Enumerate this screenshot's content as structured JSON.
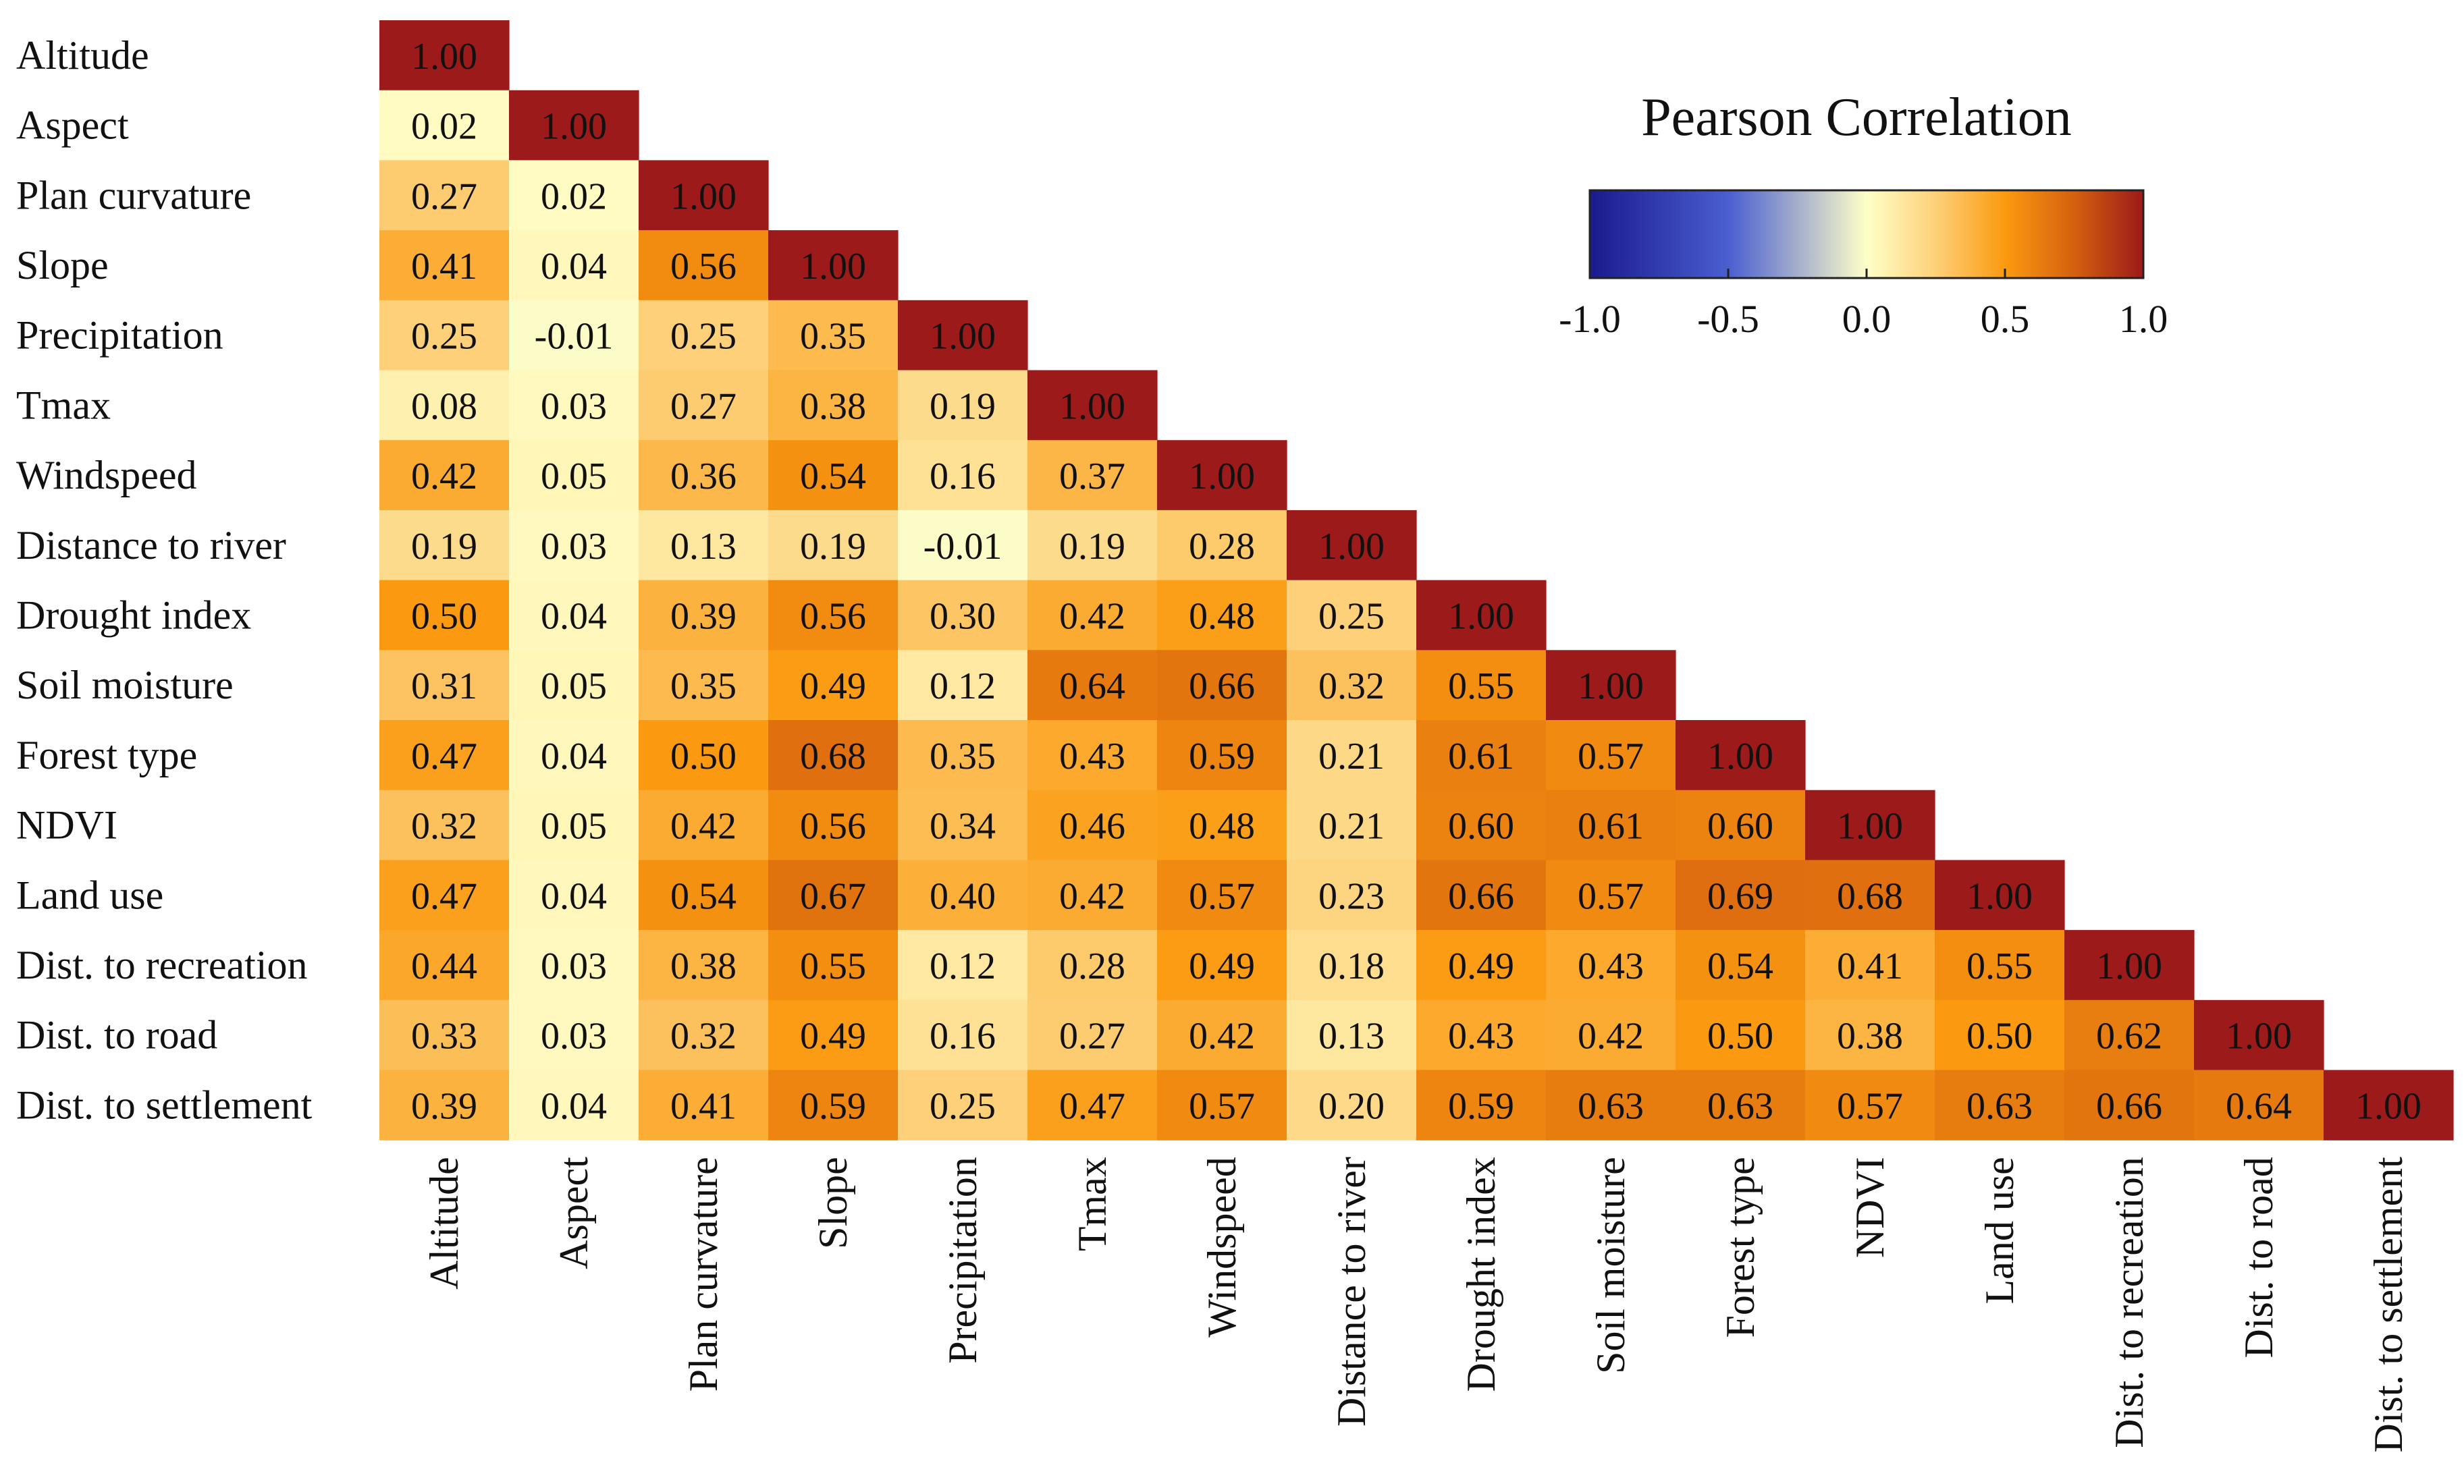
{
  "chart_data": {
    "type": "heatmap",
    "title": "",
    "variables": [
      "Altitude",
      "Aspect",
      "Plan curvature",
      "Slope",
      "Precipitation",
      "Tmax",
      "Windspeed",
      "Distance to river",
      "Drought index",
      "Soil moisture",
      "Forest type",
      "NDVI",
      "Land use",
      "Dist. to recreation",
      "Dist. to road",
      "Dist. to settlement"
    ],
    "matrix_lower_triangle": [
      [
        "1.00"
      ],
      [
        "0.02",
        "1.00"
      ],
      [
        "0.27",
        "0.02",
        "1.00"
      ],
      [
        "0.41",
        "0.04",
        "0.56",
        "1.00"
      ],
      [
        "0.25",
        "-0.01",
        "0.25",
        "0.35",
        "1.00"
      ],
      [
        "0.08",
        "0.03",
        "0.27",
        "0.38",
        "0.19",
        "1.00"
      ],
      [
        "0.42",
        "0.05",
        "0.36",
        "0.54",
        "0.16",
        "0.37",
        "1.00"
      ],
      [
        "0.19",
        "0.03",
        "0.13",
        "0.19",
        "-0.01",
        "0.19",
        "0.28",
        "1.00"
      ],
      [
        "0.50",
        "0.04",
        "0.39",
        "0.56",
        "0.30",
        "0.42",
        "0.48",
        "0.25",
        "1.00"
      ],
      [
        "0.31",
        "0.05",
        "0.35",
        "0.49",
        "0.12",
        "0.64",
        "0.66",
        "0.32",
        "0.55",
        "1.00"
      ],
      [
        "0.47",
        "0.04",
        "0.50",
        "0.68",
        "0.35",
        "0.43",
        "0.59",
        "0.21",
        "0.61",
        "0.57",
        "1.00"
      ],
      [
        "0.32",
        "0.05",
        "0.42",
        "0.56",
        "0.34",
        "0.46",
        "0.48",
        "0.21",
        "0.60",
        "0.61",
        "0.60",
        "1.00"
      ],
      [
        "0.47",
        "0.04",
        "0.54",
        "0.67",
        "0.40",
        "0.42",
        "0.57",
        "0.23",
        "0.66",
        "0.57",
        "0.69",
        "0.68",
        "1.00"
      ],
      [
        "0.44",
        "0.03",
        "0.38",
        "0.55",
        "0.12",
        "0.28",
        "0.49",
        "0.18",
        "0.49",
        "0.43",
        "0.54",
        "0.41",
        "0.55",
        "1.00"
      ],
      [
        "0.33",
        "0.03",
        "0.32",
        "0.49",
        "0.16",
        "0.27",
        "0.42",
        "0.13",
        "0.43",
        "0.42",
        "0.50",
        "0.38",
        "0.50",
        "0.62",
        "1.00"
      ],
      [
        "0.39",
        "0.04",
        "0.41",
        "0.59",
        "0.25",
        "0.47",
        "0.57",
        "0.20",
        "0.59",
        "0.63",
        "0.63",
        "0.57",
        "0.63",
        "0.66",
        "0.64",
        "1.00"
      ]
    ],
    "legend": {
      "title": "Pearson  Correlation",
      "range": [
        -1.0,
        1.0
      ],
      "ticks": [
        "-1.0",
        "-0.5",
        "0.0",
        "0.5",
        "1.0"
      ],
      "colorscale": [
        {
          "v": -1.0,
          "c": "#1a1a8c"
        },
        {
          "v": -0.5,
          "c": "#4a5ed0"
        },
        {
          "v": 0.0,
          "c": "#ffffc8"
        },
        {
          "v": 0.25,
          "c": "#fdd079"
        },
        {
          "v": 0.5,
          "c": "#fb9a10"
        },
        {
          "v": 0.75,
          "c": "#d5600f"
        },
        {
          "v": 1.0,
          "c": "#9c1a1a"
        }
      ]
    }
  }
}
